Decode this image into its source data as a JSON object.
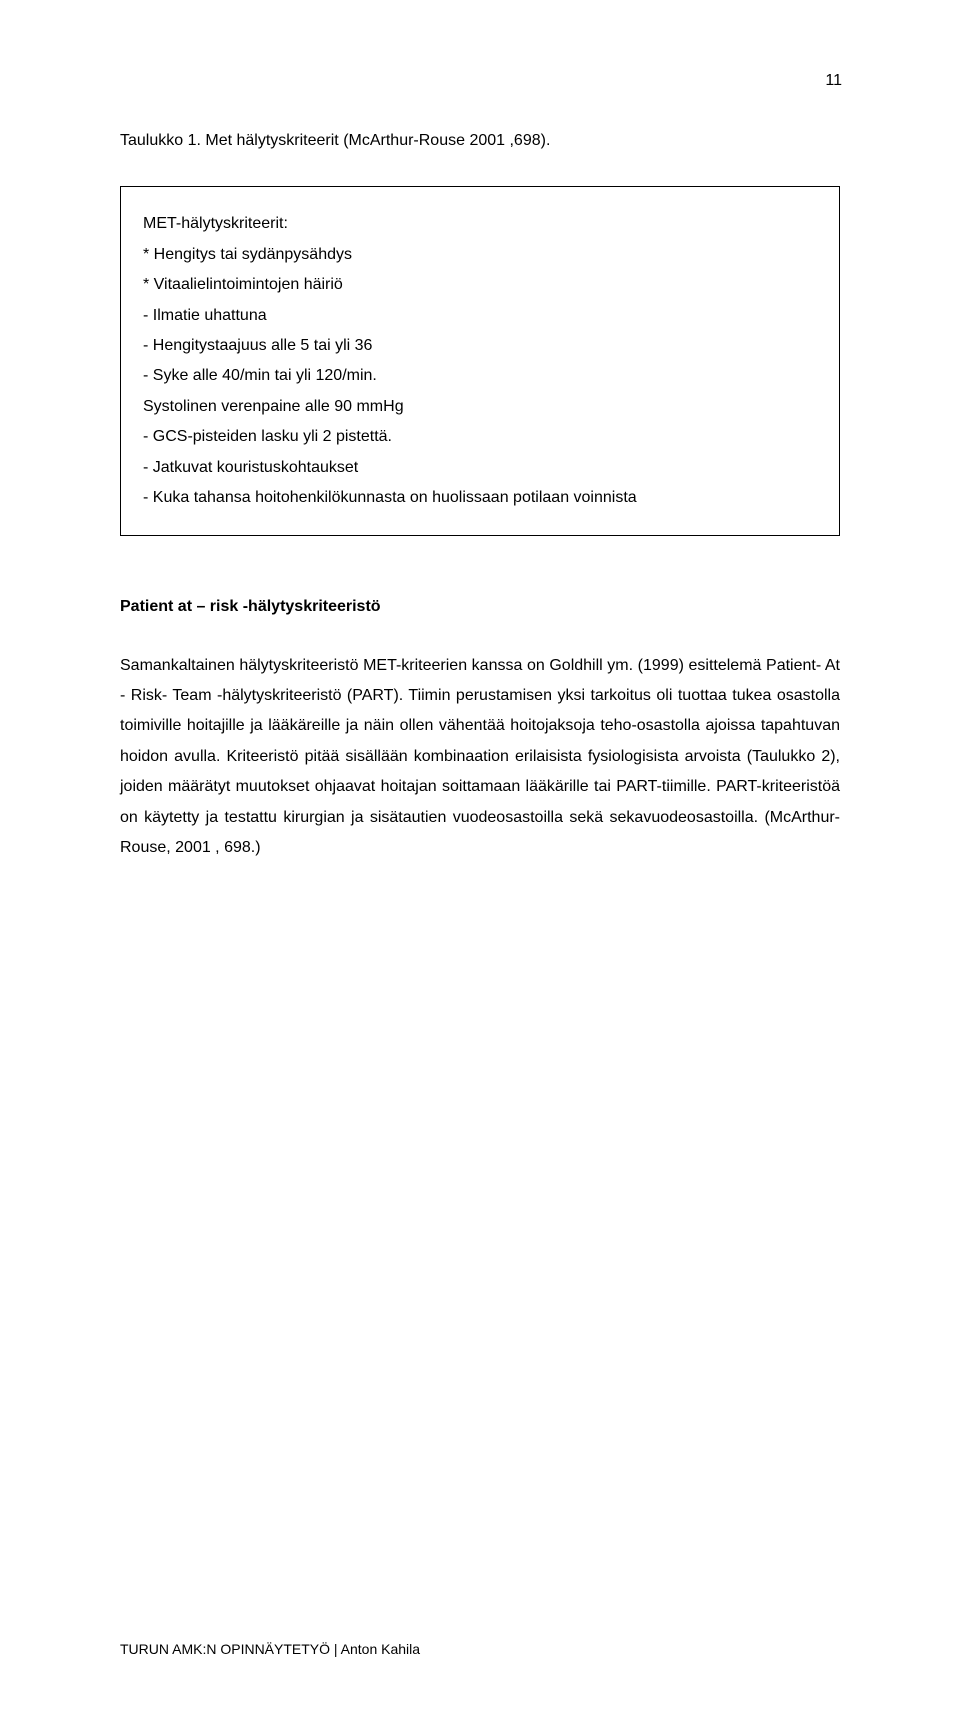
{
  "page_number": "11",
  "table_caption": "Taulukko 1. Met hälytyskriteerit (McArthur-Rouse 2001 ,698).",
  "box": {
    "heading": "MET-hälytyskriteerit:",
    "items": [
      "* Hengitys tai sydänpysähdys",
      "* Vitaalielintoimintojen häiriö",
      "- Ilmatie uhattuna",
      "- Hengitystaajuus alle 5 tai yli 36",
      "- Syke alle 40/min tai yli 120/min.",
      "Systolinen verenpaine alle 90 mmHg",
      "- GCS-pisteiden lasku yli 2 pistettä.",
      "- Jatkuvat kouristuskohtaukset",
      "- Kuka tahansa hoitohenkilökunnasta on huolissaan potilaan voinnista"
    ]
  },
  "section_heading": "Patient at – risk -hälytyskriteeristö",
  "body": "Samankaltainen hälytyskriteeristö MET-kriteerien kanssa on Goldhill ym. (1999) esittelemä Patient- At - Risk- Team -hälytyskriteeristö (PART). Tiimin perustamisen yksi tarkoitus oli tuottaa tukea osastolla toimiville hoitajille ja lääkäreille ja näin ollen vähentää hoitojaksoja teho-osastolla ajoissa tapahtuvan hoidon avulla. Kriteeristö pitää sisällään kombinaation erilaisista fysiologisista arvoista (Taulukko 2), joiden määrätyt muutokset ohjaavat hoitajan soittamaan lääkärille tai PART-tiimille. PART-kriteeristöä on käytetty ja testattu kirurgian ja sisätautien vuodeosastoilla sekä sekavuodeosastoilla. (McArthur-Rouse, 2001 , 698.)",
  "footer": "TURUN AMK:N OPINNÄYTETYÖ | Anton Kahila"
}
